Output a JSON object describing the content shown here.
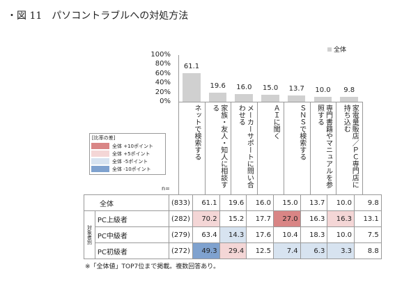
{
  "title": "・図 11　パソコントラブルへの対処方法",
  "chart_data": {
    "type": "bar",
    "legend": "全体",
    "legend_placement": "top-right",
    "ylim": [
      0,
      100
    ],
    "yticks": [
      "100%",
      "80%",
      "60%",
      "40%",
      "20%",
      "0%"
    ],
    "categories": [
      "ネットで検索する",
      "家族・友人・知人に相談する",
      "メーカーサポートに問い合わせる",
      "ＡＩに聞く",
      "ＳＮＳで検索する",
      "専門書籍やマニュアルを参照する",
      "家電量販店／ＰＣ専門店に持ち込む"
    ],
    "values": [
      61.1,
      19.6,
      16.0,
      15.0,
      13.7,
      10.0,
      9.8
    ],
    "bar_color": "#d0d0d0"
  },
  "diff_legend": {
    "title": "[比率の差]",
    "items": [
      {
        "label": "全体 +10ポイント",
        "color": "#d98585"
      },
      {
        "label": "全体 +5ポイント",
        "color": "#f4d6d6"
      },
      {
        "label": "全体 -5ポイント",
        "color": "#d7e3f0"
      },
      {
        "label": "全体 -10ポイント",
        "color": "#7fa2cf"
      }
    ]
  },
  "table": {
    "n_label": "n=",
    "group_label": "対象者別",
    "rows": [
      {
        "label": "全体",
        "n": "(833)",
        "values": [
          "61.1",
          "19.6",
          "16.0",
          "15.0",
          "13.7",
          "10.0",
          "9.8"
        ],
        "flags": [
          0,
          0,
          0,
          0,
          0,
          0,
          0
        ]
      },
      {
        "label": "PC上級者",
        "n": "(282)",
        "values": [
          "70.2",
          "15.2",
          "17.7",
          "27.0",
          "16.3",
          "16.3",
          "13.1"
        ],
        "flags": [
          1,
          0,
          0,
          2,
          0,
          1,
          0
        ]
      },
      {
        "label": "PC中級者",
        "n": "(279)",
        "values": [
          "63.4",
          "14.3",
          "17.6",
          "10.4",
          "18.3",
          "10.0",
          "7.5"
        ],
        "flags": [
          0,
          -1,
          0,
          0,
          0,
          0,
          0
        ]
      },
      {
        "label": "PC初級者",
        "n": "(272)",
        "values": [
          "49.3",
          "29.4",
          "12.5",
          "7.4",
          "6.3",
          "3.3",
          "8.8"
        ],
        "flags": [
          -2,
          1,
          0,
          -1,
          -1,
          -1,
          0
        ]
      }
    ]
  },
  "note": "※「全体値」TOP7位まで掲載。複数回答あり。"
}
